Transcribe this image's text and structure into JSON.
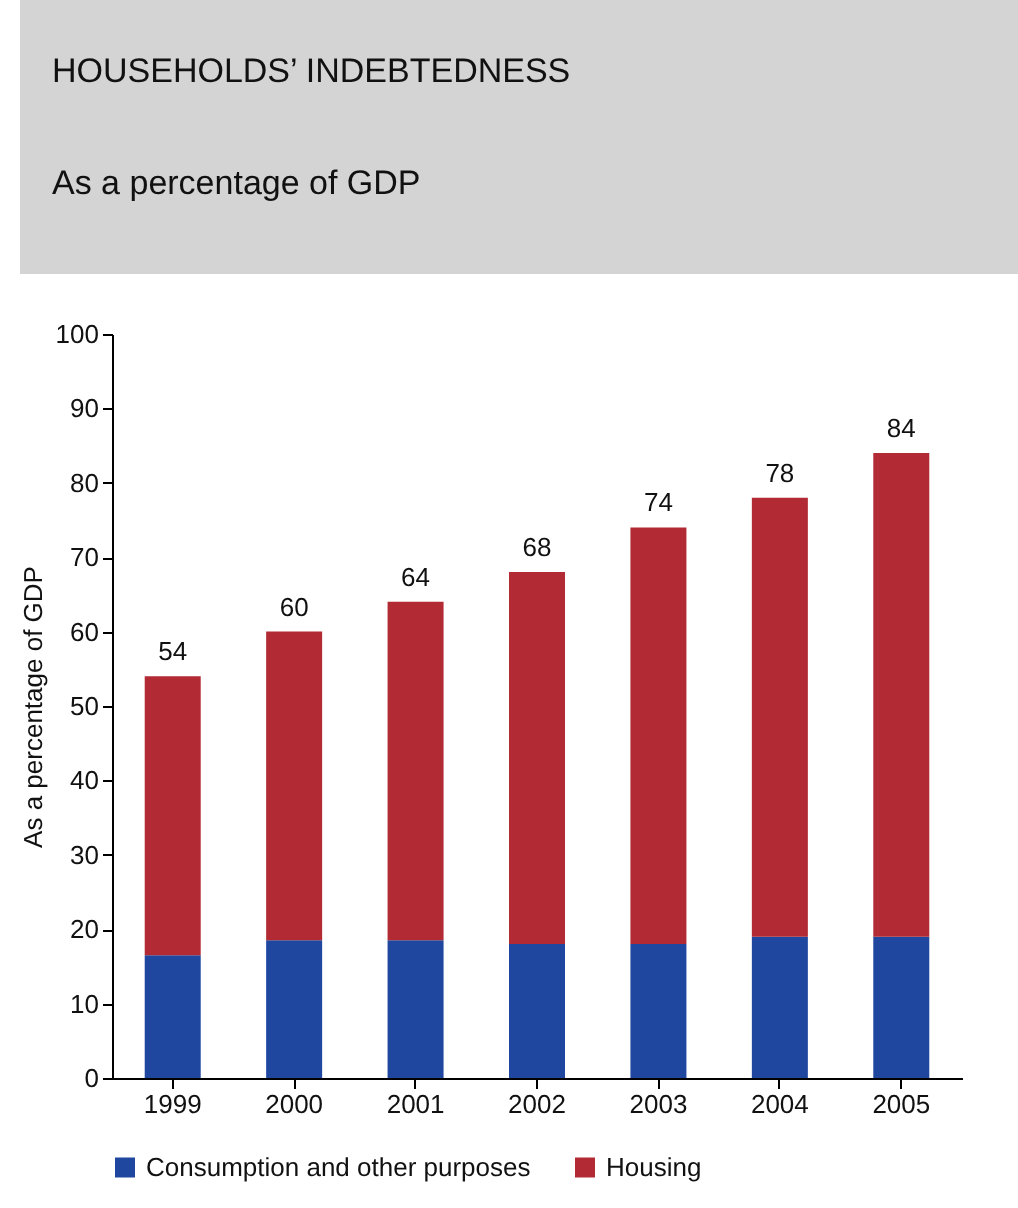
{
  "chart_data": {
    "type": "bar",
    "title": "HOUSEHOLDS’ INDEBTEDNESS",
    "subtitle": "As a percentage of GDP",
    "ylabel": "As a percentage of GDP",
    "categories": [
      "1999",
      "2000",
      "2001",
      "2002",
      "2003",
      "2004",
      "2005"
    ],
    "series": [
      {
        "name": "Consumption and other purposes",
        "color": "#1f47a0",
        "values": [
          16.5,
          18.5,
          18.5,
          18,
          18,
          19,
          19
        ]
      },
      {
        "name": "Housing",
        "color": "#b22a33",
        "values": [
          37.5,
          41.5,
          45.5,
          50,
          56,
          59,
          65
        ]
      }
    ],
    "stacked": true,
    "totals": [
      "54",
      "60",
      "64",
      "68",
      "74",
      "78",
      "84"
    ],
    "ylim": [
      0,
      100
    ],
    "yticks": [
      0,
      10,
      20,
      30,
      40,
      50,
      60,
      70,
      80,
      90,
      100
    ],
    "grid": false,
    "legend": "bottom"
  }
}
